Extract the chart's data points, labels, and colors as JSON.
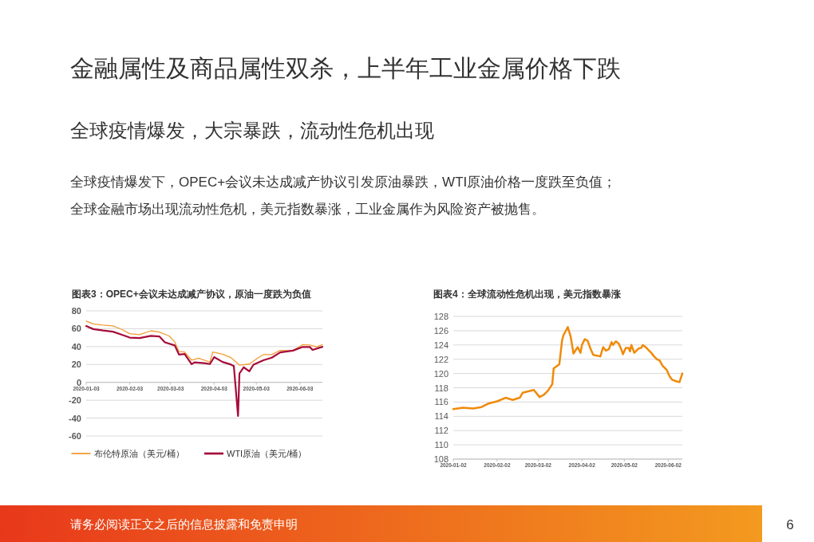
{
  "chart_data": [
    {
      "type": "other",
      "title": "金融属性及商品属性双杀，上半年工业金属价格下跌",
      "subtitle": "全球疫情爆发，大宗暴跌，流动性危机出现",
      "annotations": [
        "全球疫情爆发下，OPEC+会议未达成减产协议引发原油暴跌，WTI原油价格一度跌至负值；",
        "全球金融市场出现流动性危机，美元指数暴涨，工业金属作为风险资产被抛售。",
        "请务必阅读正文之后的信息披露和免责申明",
        "6"
      ]
    },
    {
      "type": "line",
      "title": "图表3：OPEC+会议未达成减产协议，原油一度跌为负值",
      "ylim": [
        -60,
        80
      ],
      "yticks": [
        -60,
        -40,
        -20,
        0,
        20,
        40,
        60,
        80
      ],
      "xlim": [
        "2020-01-03",
        "2020-06-19"
      ],
      "xticks": [
        "2020-01-03",
        "2020-02-03",
        "2020-03-03",
        "2020-04-03",
        "2020-05-03",
        "2020-06-03"
      ],
      "grid": "y",
      "legend": "bottom",
      "series": [
        {
          "name": "布伦特原油（美元/桶）",
          "color": "#f39c33",
          "x": [
            "2020-01-03",
            "2020-01-08",
            "2020-01-15",
            "2020-01-22",
            "2020-01-28",
            "2020-02-03",
            "2020-02-10",
            "2020-02-18",
            "2020-02-24",
            "2020-03-02",
            "2020-03-06",
            "2020-03-09",
            "2020-03-13",
            "2020-03-18",
            "2020-03-23",
            "2020-03-31",
            "2020-04-02",
            "2020-04-09",
            "2020-04-15",
            "2020-04-21",
            "2020-04-28",
            "2020-05-04",
            "2020-05-08",
            "2020-05-14",
            "2020-05-20",
            "2020-05-29",
            "2020-06-05",
            "2020-06-10",
            "2020-06-15",
            "2020-06-19"
          ],
          "values": [
            68.6,
            65.4,
            64.0,
            63.2,
            59.5,
            54.5,
            53.3,
            57.7,
            56.3,
            51.9,
            45.3,
            34.4,
            33.9,
            24.9,
            27.0,
            22.7,
            34.0,
            31.5,
            27.7,
            19.3,
            20.5,
            27.2,
            31.0,
            31.1,
            35.8,
            35.3,
            42.3,
            41.7,
            39.7,
            42.2
          ]
        },
        {
          "name": "WTI原油（美元/桶）",
          "color": "#a50b3a",
          "x": [
            "2020-01-03",
            "2020-01-08",
            "2020-01-15",
            "2020-01-22",
            "2020-01-28",
            "2020-02-03",
            "2020-02-10",
            "2020-02-18",
            "2020-02-24",
            "2020-02-28",
            "2020-03-06",
            "2020-03-09",
            "2020-03-13",
            "2020-03-18",
            "2020-03-20",
            "2020-03-27",
            "2020-03-31",
            "2020-04-03",
            "2020-04-09",
            "2020-04-15",
            "2020-04-17",
            "2020-04-20",
            "2020-04-21",
            "2020-04-24",
            "2020-04-28",
            "2020-05-01",
            "2020-05-08",
            "2020-05-14",
            "2020-05-20",
            "2020-05-29",
            "2020-06-05",
            "2020-06-10",
            "2020-06-12",
            "2020-06-19"
          ],
          "values": [
            63.0,
            59.6,
            58.0,
            56.7,
            53.5,
            50.1,
            49.6,
            52.0,
            51.4,
            44.8,
            41.3,
            31.1,
            31.7,
            20.4,
            22.4,
            21.5,
            20.5,
            28.3,
            22.8,
            19.9,
            18.3,
            -37.6,
            10.0,
            16.9,
            12.3,
            19.8,
            24.7,
            27.6,
            33.5,
            35.5,
            39.6,
            39.6,
            36.3,
            39.8
          ]
        }
      ]
    },
    {
      "type": "line",
      "title": "图表4：全球流动性危机出现，美元指数暴涨",
      "ylim": [
        108,
        128
      ],
      "yticks": [
        108,
        110,
        112,
        114,
        116,
        118,
        120,
        122,
        124,
        126,
        128
      ],
      "xlim": [
        "2020-01-02",
        "2020-06-12"
      ],
      "xticks": [
        "2020-01-02",
        "2020-02-02",
        "2020-03-02",
        "2020-04-02",
        "2020-05-02",
        "2020-06-02"
      ],
      "grid": "y",
      "series": [
        {
          "color": "#f08a0a",
          "x": [
            "2020-01-02",
            "2020-01-09",
            "2020-01-16",
            "2020-01-22",
            "2020-01-27",
            "2020-02-02",
            "2020-02-08",
            "2020-02-13",
            "2020-02-18",
            "2020-02-20",
            "2020-02-28",
            "2020-03-03",
            "2020-03-06",
            "2020-03-09",
            "2020-03-12",
            "2020-03-13",
            "2020-03-17",
            "2020-03-19",
            "2020-03-20",
            "2020-03-23",
            "2020-03-25",
            "2020-03-27",
            "2020-03-30",
            "2020-04-01",
            "2020-04-02",
            "2020-04-04",
            "2020-04-06",
            "2020-04-08",
            "2020-04-10",
            "2020-04-15",
            "2020-04-17",
            "2020-04-19",
            "2020-04-21",
            "2020-04-23",
            "2020-04-24",
            "2020-04-26",
            "2020-04-28",
            "2020-04-30",
            "2020-05-01",
            "2020-05-03",
            "2020-05-05",
            "2020-05-06",
            "2020-05-07",
            "2020-05-09",
            "2020-05-12",
            "2020-05-14",
            "2020-05-15",
            "2020-05-17",
            "2020-05-21",
            "2020-05-23",
            "2020-05-25",
            "2020-05-27",
            "2020-05-29",
            "2020-06-01",
            "2020-06-03",
            "2020-06-05",
            "2020-06-08",
            "2020-06-10",
            "2020-06-12"
          ],
          "values": [
            115.0,
            115.2,
            115.1,
            115.3,
            115.8,
            116.1,
            116.6,
            116.3,
            116.6,
            117.3,
            117.7,
            116.7,
            117.0,
            117.6,
            118.5,
            120.7,
            121.3,
            124.7,
            125.4,
            126.5,
            125.2,
            122.8,
            123.7,
            122.9,
            124.0,
            124.8,
            124.6,
            123.5,
            122.6,
            122.4,
            123.7,
            123.2,
            123.4,
            124.4,
            124.0,
            124.5,
            124.2,
            123.3,
            122.7,
            123.6,
            123.6,
            123.1,
            124.0,
            122.9,
            123.5,
            123.6,
            124.0,
            123.7,
            122.9,
            122.4,
            122.0,
            121.8,
            121.1,
            120.5,
            119.6,
            119.1,
            118.9,
            118.8,
            120.0
          ]
        }
      ]
    }
  ]
}
